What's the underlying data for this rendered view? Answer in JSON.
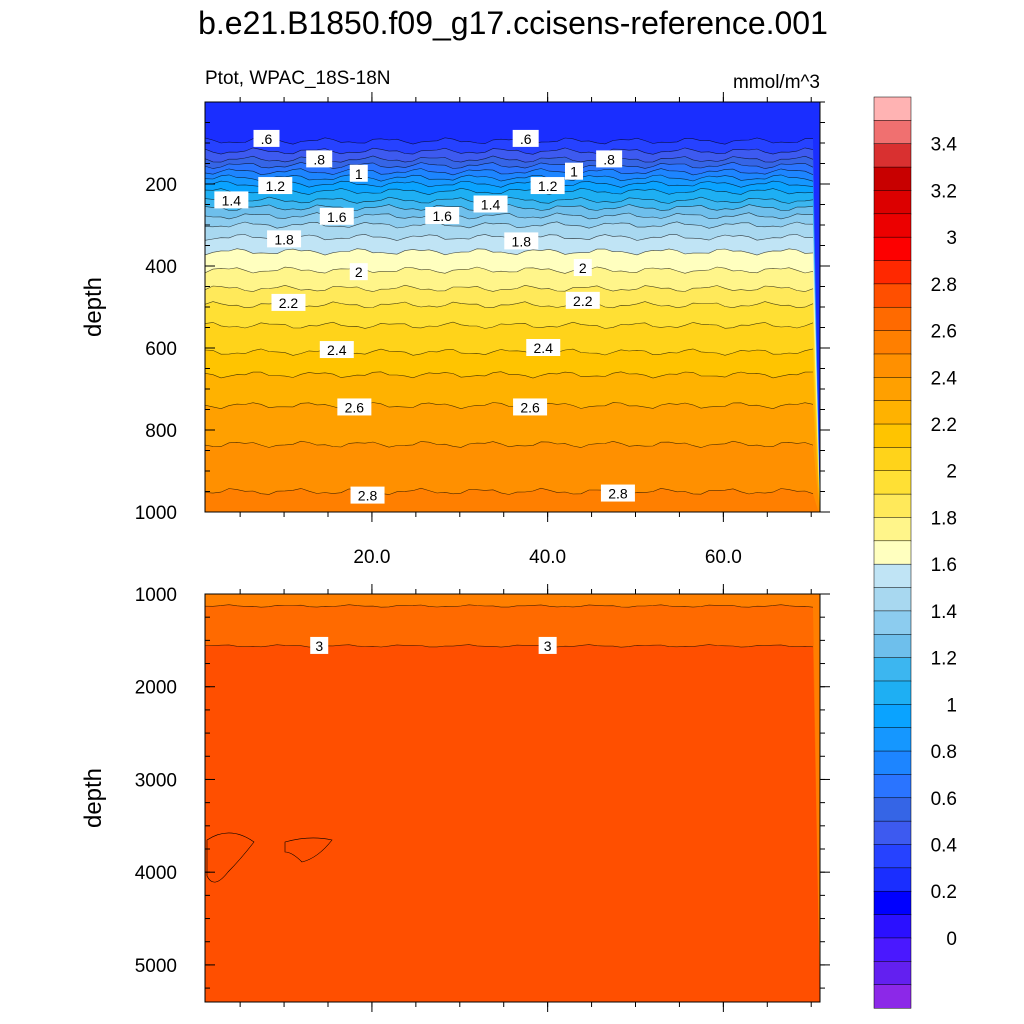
{
  "title": "b.e21.B1850.f09_g17.ccisens-reference.001",
  "chart_data": {
    "type": "heatmap",
    "left_label": "Ptot, WPAC_18S-18N",
    "right_label": "mmol/m^3",
    "ylabel": "depth",
    "xlim": [
      1,
      71
    ],
    "x_ticks": [
      "20.0",
      "40.0",
      "60.0"
    ],
    "x_tick_values": [
      20,
      40,
      60
    ],
    "panels": [
      {
        "name": "upper",
        "ylim": [
          0,
          1000
        ],
        "y_ticks": [
          "200",
          "400",
          "600",
          "800",
          "1000"
        ],
        "y_tick_values": [
          200,
          400,
          600,
          800,
          1000
        ],
        "contour_depths": [
          {
            "level": 0.6,
            "depth": 95
          },
          {
            "level": 0.7,
            "depth": 120
          },
          {
            "level": 0.8,
            "depth": 140
          },
          {
            "level": 0.9,
            "depth": 155
          },
          {
            "level": 1.0,
            "depth": 170
          },
          {
            "level": 1.1,
            "depth": 185
          },
          {
            "level": 1.2,
            "depth": 200
          },
          {
            "level": 1.3,
            "depth": 218
          },
          {
            "level": 1.4,
            "depth": 240
          },
          {
            "level": 1.5,
            "depth": 258
          },
          {
            "level": 1.6,
            "depth": 278
          },
          {
            "level": 1.7,
            "depth": 300
          },
          {
            "level": 1.8,
            "depth": 330
          },
          {
            "level": 1.9,
            "depth": 365
          },
          {
            "level": 2.0,
            "depth": 410
          },
          {
            "level": 2.1,
            "depth": 455
          },
          {
            "level": 2.2,
            "depth": 495
          },
          {
            "level": 2.3,
            "depth": 545
          },
          {
            "level": 2.4,
            "depth": 610
          },
          {
            "level": 2.5,
            "depth": 665
          },
          {
            "level": 2.6,
            "depth": 740
          },
          {
            "level": 2.7,
            "depth": 835
          },
          {
            "level": 2.8,
            "depth": 950
          }
        ],
        "contour_labels": [
          {
            "text": ".6",
            "x": 8,
            "depth": 90
          },
          {
            "text": ".6",
            "x": 37.5,
            "depth": 90
          },
          {
            "text": ".8",
            "x": 14,
            "depth": 140
          },
          {
            "text": ".8",
            "x": 47,
            "depth": 140
          },
          {
            "text": "1",
            "x": 18.5,
            "depth": 175
          },
          {
            "text": "1",
            "x": 43,
            "depth": 170
          },
          {
            "text": "1.2",
            "x": 9,
            "depth": 205
          },
          {
            "text": "1.2",
            "x": 40,
            "depth": 205
          },
          {
            "text": "1.4",
            "x": 4,
            "depth": 240
          },
          {
            "text": "1.4",
            "x": 33.5,
            "depth": 250
          },
          {
            "text": "1.6",
            "x": 16,
            "depth": 280
          },
          {
            "text": "1.6",
            "x": 28,
            "depth": 278
          },
          {
            "text": "1.8",
            "x": 10,
            "depth": 335
          },
          {
            "text": "1.8",
            "x": 37,
            "depth": 340
          },
          {
            "text": "2",
            "x": 18.5,
            "depth": 415
          },
          {
            "text": "2",
            "x": 44,
            "depth": 405
          },
          {
            "text": "2.2",
            "x": 10.5,
            "depth": 490
          },
          {
            "text": "2.2",
            "x": 44,
            "depth": 485
          },
          {
            "text": "2.4",
            "x": 16,
            "depth": 605
          },
          {
            "text": "2.4",
            "x": 39.5,
            "depth": 600
          },
          {
            "text": "2.6",
            "x": 18,
            "depth": 745
          },
          {
            "text": "2.6",
            "x": 38,
            "depth": 745
          },
          {
            "text": "2.8",
            "x": 19.5,
            "depth": 960
          },
          {
            "text": "2.8",
            "x": 48,
            "depth": 955
          }
        ]
      },
      {
        "name": "lower",
        "ylim": [
          1000,
          5400
        ],
        "y_ticks": [
          "1000",
          "2000",
          "3000",
          "4000",
          "5000"
        ],
        "y_tick_values": [
          1000,
          2000,
          3000,
          4000,
          5000
        ],
        "contour_depths": [
          {
            "level": 2.9,
            "depth": 1130
          },
          {
            "level": 3.0,
            "depth": 1560
          }
        ],
        "contour_labels": [
          {
            "text": "3",
            "x": 14,
            "depth": 1560
          },
          {
            "text": "3",
            "x": 40,
            "depth": 1560
          }
        ]
      }
    ],
    "colorbar": {
      "colors": [
        "#ffb3b3",
        "#f07070",
        "#d93030",
        "#c80000",
        "#dc0000",
        "#ec0000",
        "#fd0000",
        "#ff2800",
        "#ff4f00",
        "#ff6a00",
        "#ff7f00",
        "#ff9000",
        "#ffa000",
        "#ffb200",
        "#ffc400",
        "#ffd31a",
        "#ffe034",
        "#ffe95a",
        "#fff58a",
        "#ffffbf",
        "#c0e4f5",
        "#a8d8f0",
        "#8cccef",
        "#6ebfec",
        "#3cb6f0",
        "#1eaff3",
        "#0aa3ff",
        "#1597ff",
        "#1d85ff",
        "#2a74ff",
        "#3565e6",
        "#3d5af0",
        "#2642ff",
        "#1a2eff",
        "#0000ff",
        "#2b10ff",
        "#4a18ff",
        "#6320f0",
        "#8c28e8"
      ],
      "labels": [
        "3.4",
        "3.2",
        "3",
        "2.8",
        "2.6",
        "2.4",
        "2.2",
        "2",
        "1.8",
        "1.6",
        "1.4",
        "1.2",
        "1",
        "0.8",
        "0.6",
        "0.4",
        "0.2",
        "0"
      ]
    }
  }
}
